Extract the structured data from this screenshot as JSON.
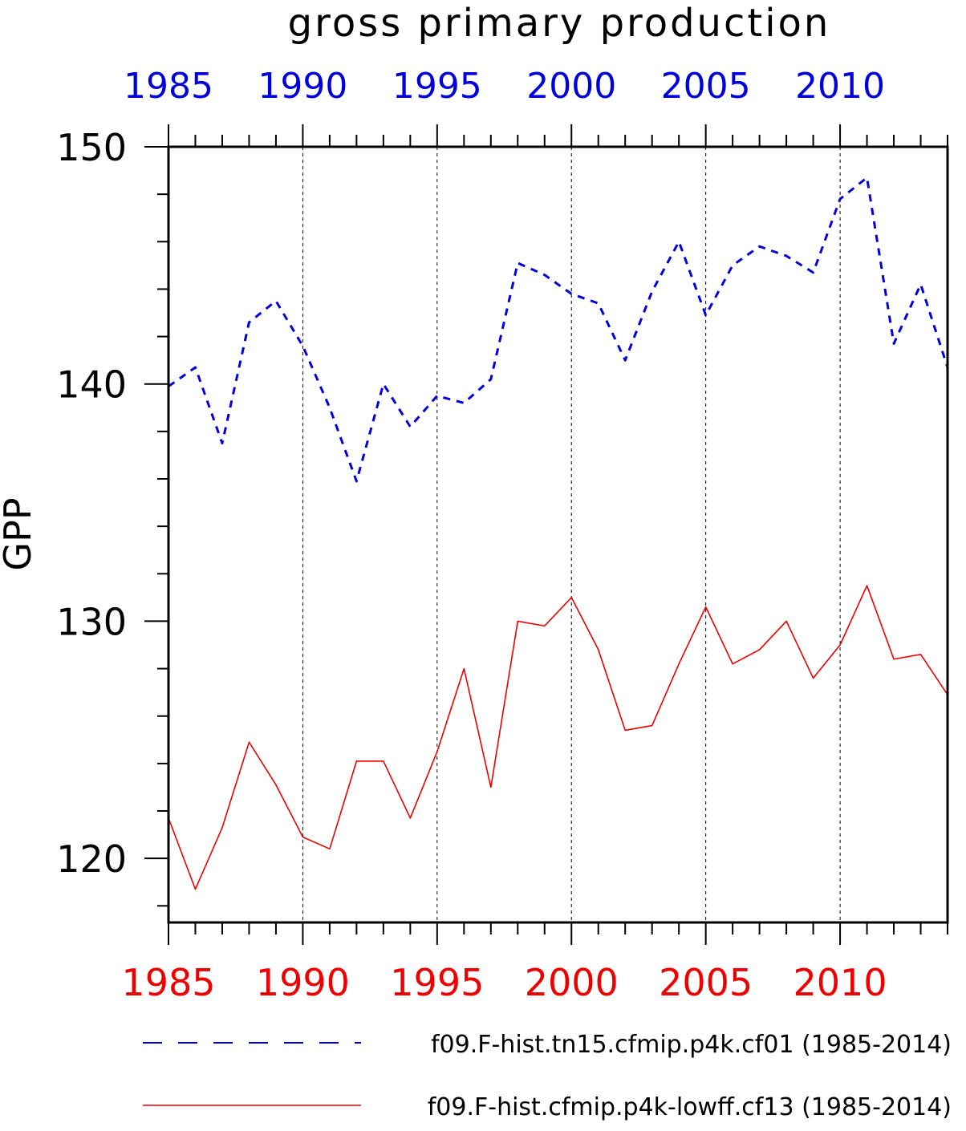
{
  "chart_data": {
    "type": "line",
    "title": "gross primary production",
    "ylabel": "GPP",
    "xlabel": "",
    "xlim": [
      1985,
      2014
    ],
    "ylim": [
      117.3,
      150
    ],
    "grid": "vertical dashed lines at major x ticks",
    "x_ticks": [
      1985,
      1990,
      1995,
      2000,
      2005,
      2010
    ],
    "y_ticks": [
      120,
      130,
      140,
      150
    ],
    "x": [
      1985,
      1986,
      1987,
      1988,
      1989,
      1990,
      1991,
      1992,
      1993,
      1994,
      1995,
      1996,
      1997,
      1998,
      1999,
      2000,
      2001,
      2002,
      2003,
      2004,
      2005,
      2006,
      2007,
      2008,
      2009,
      2010,
      2011,
      2012,
      2013,
      2014
    ],
    "legend_position": "bottom",
    "series": [
      {
        "name": "f09.F-hist.tn15.cfmip.p4k.cf01 (1985-2014)",
        "color": "#0000dd",
        "style": "dashed",
        "axis": "top",
        "values": [
          139.9,
          140.7,
          137.5,
          142.6,
          143.5,
          141.6,
          139.0,
          135.9,
          140.0,
          138.2,
          139.5,
          139.2,
          140.2,
          145.1,
          144.6,
          143.8,
          143.4,
          141.0,
          143.9,
          146.0,
          142.9,
          145.0,
          145.8,
          145.4,
          144.7,
          147.8,
          148.7,
          141.7,
          144.2,
          140.7
        ]
      },
      {
        "name": "f09.F-hist.cfmip.p4k-lowff.cf13 (1985-2014)",
        "color": "#ee0000",
        "style": "solid",
        "axis": "bottom",
        "values": [
          121.7,
          118.7,
          121.3,
          124.9,
          123.1,
          120.9,
          120.4,
          124.1,
          124.1,
          121.7,
          124.5,
          128.0,
          123.0,
          130.0,
          129.8,
          131.0,
          128.8,
          125.4,
          125.6,
          128.2,
          130.6,
          128.2,
          128.8,
          130.0,
          127.6,
          129.0,
          131.5,
          128.4,
          128.6,
          126.9
        ]
      }
    ]
  }
}
